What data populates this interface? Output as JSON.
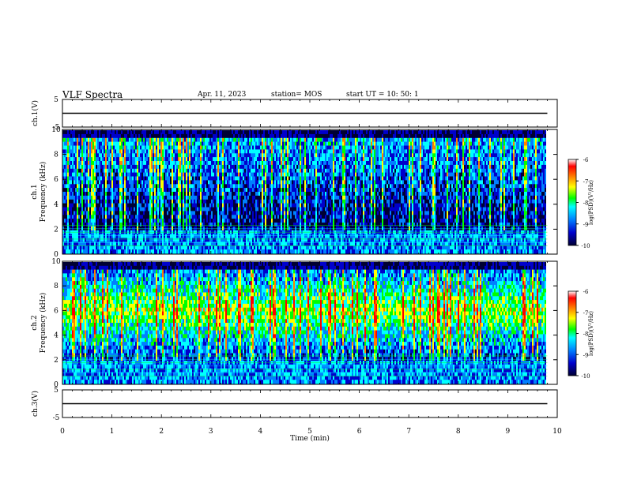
{
  "header": {
    "title": "VLF Spectra",
    "date": "Apr. 11, 2023",
    "station": "station= MOS",
    "start": "start  UT =   10: 50: 1"
  },
  "chart_data": [
    {
      "type": "line",
      "ylabel": "ch.1(V)",
      "ylim": [
        -5,
        5
      ],
      "yticks": [
        "5",
        "-5"
      ],
      "xlim": [
        0,
        10
      ],
      "series": [
        {
          "values_note": "flat",
          "x": [
            0,
            9.8
          ],
          "y": [
            0,
            0
          ]
        }
      ]
    },
    {
      "type": "heatmap",
      "ylabel": "ch.1",
      "ylabel2": "Frequency (kHz)",
      "ylim": [
        0,
        10
      ],
      "yticks": [
        "0",
        "2",
        "4",
        "6",
        "8",
        "10"
      ],
      "xlim": [
        0,
        10
      ],
      "colorbar": {
        "label": "log(PSD)(V²/Hz)",
        "range": [
          -10,
          -6
        ],
        "ticks": [
          "-6",
          "-7",
          "-8",
          "-9",
          "-10"
        ]
      }
    },
    {
      "type": "heatmap",
      "ylabel": "ch.2",
      "ylabel2": "Frequency (kHz)",
      "ylim": [
        0,
        10
      ],
      "yticks": [
        "0",
        "2",
        "4",
        "6",
        "8",
        "10"
      ],
      "xlim": [
        0,
        10
      ],
      "colorbar": {
        "label": "log(PSD)(V²/Hz)",
        "range": [
          -10,
          -6
        ],
        "ticks": [
          "-6",
          "-7",
          "-8",
          "-9",
          "-10"
        ]
      }
    },
    {
      "type": "line",
      "ylabel": "ch.3(V)",
      "ylim": [
        -5,
        5
      ],
      "yticks": [
        "5",
        "-5"
      ],
      "xlim": [
        0,
        10
      ],
      "xlabel": "Time (min)",
      "xticks": [
        "0",
        "1",
        "2",
        "3",
        "4",
        "5",
        "6",
        "7",
        "8",
        "9",
        "10"
      ],
      "series": [
        {
          "x": [
            0,
            9.8
          ],
          "y": [
            0,
            0
          ]
        }
      ]
    }
  ],
  "colors": {
    "colormap": [
      "#000033",
      "#0000cc",
      "#0080ff",
      "#00ffff",
      "#00ff00",
      "#ffff00",
      "#ff8000",
      "#ff0000",
      "#ffffff"
    ],
    "axis": "#000000"
  }
}
